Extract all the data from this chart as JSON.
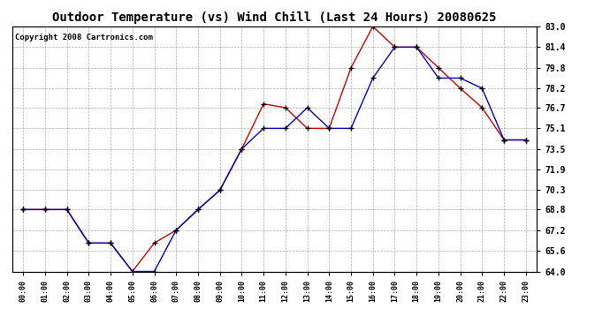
{
  "title": "Outdoor Temperature (vs) Wind Chill (Last 24 Hours) 20080625",
  "copyright": "Copyright 2008 Cartronics.com",
  "hours": [
    "00:00",
    "01:00",
    "02:00",
    "03:00",
    "04:00",
    "05:00",
    "06:00",
    "07:00",
    "08:00",
    "09:00",
    "10:00",
    "11:00",
    "12:00",
    "13:00",
    "14:00",
    "15:00",
    "16:00",
    "17:00",
    "18:00",
    "19:00",
    "20:00",
    "21:00",
    "22:00",
    "23:00"
  ],
  "temp": [
    68.8,
    68.8,
    68.8,
    66.2,
    66.2,
    64.0,
    66.2,
    67.2,
    68.8,
    70.3,
    73.5,
    77.0,
    76.7,
    75.1,
    75.1,
    79.8,
    83.0,
    81.4,
    81.4,
    79.8,
    78.2,
    76.7,
    74.2,
    74.2
  ],
  "wind_chill": [
    68.8,
    68.8,
    68.8,
    66.2,
    66.2,
    64.0,
    64.0,
    67.2,
    68.8,
    70.3,
    73.5,
    75.1,
    75.1,
    76.7,
    75.1,
    75.1,
    79.0,
    81.4,
    81.4,
    79.0,
    79.0,
    78.2,
    74.2,
    74.2
  ],
  "temp_color": "#cc0000",
  "wind_chill_color": "#0000cc",
  "ylim": [
    64.0,
    83.0
  ],
  "yticks": [
    64.0,
    65.6,
    67.2,
    68.8,
    70.3,
    71.9,
    73.5,
    75.1,
    76.7,
    78.2,
    79.8,
    81.4,
    83.0
  ],
  "bg_color": "#ffffff",
  "plot_bg_color": "#ffffff",
  "grid_color": "#aaaaaa",
  "title_fontsize": 10,
  "copyright_fontsize": 6.5
}
